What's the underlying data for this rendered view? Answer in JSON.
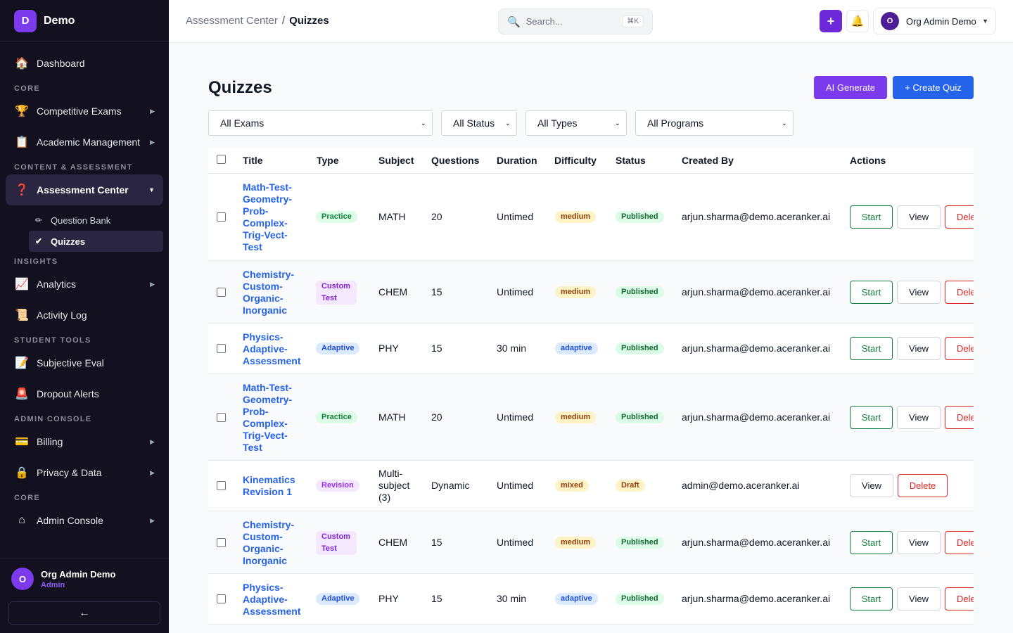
{
  "brand": {
    "logo_letter": "D",
    "name": "Demo"
  },
  "sidebar": {
    "dashboard": "Dashboard",
    "section_core": "CORE",
    "competitive_exams": "Competitive Exams",
    "academic_management": "Academic Management",
    "section_content": "CONTENT & ASSESSMENT",
    "assessment_center": "Assessment Center",
    "question_bank": "Question Bank",
    "quizzes": "Quizzes",
    "section_insights": "INSIGHTS",
    "analytics": "Analytics",
    "activity_log": "Activity Log",
    "section_student": "STUDENT TOOLS",
    "subjective_eval": "Subjective Eval",
    "dropout_alerts": "Dropout Alerts",
    "section_admin": "ADMIN CONSOLE",
    "billing": "Billing",
    "privacy_data": "Privacy & Data",
    "section_core2": "CORE",
    "admin_console": "Admin Console"
  },
  "footer_user": {
    "initial": "O",
    "name": "Org Admin Demo",
    "role": "Admin"
  },
  "topbar": {
    "breadcrumb_parent": "Assessment Center",
    "breadcrumb_sep": "/",
    "breadcrumb_current": "Quizzes",
    "search_placeholder": "Search...",
    "search_shortcut": "⌘K",
    "account_initial": "O",
    "account_name": "Org Admin Demo"
  },
  "page": {
    "title": "Quizzes",
    "ai_generate": "AI Generate",
    "create_quiz": "+ Create Quiz",
    "filters": {
      "exams": "All Exams",
      "status": "All Status",
      "types": "All Types",
      "programs": "All Programs"
    }
  },
  "table": {
    "headers": {
      "title": "Title",
      "type": "Type",
      "subject": "Subject",
      "questions": "Questions",
      "duration": "Duration",
      "difficulty": "Difficulty",
      "status": "Status",
      "created_by": "Created By",
      "actions": "Actions"
    },
    "action_labels": {
      "start": "Start",
      "view": "View",
      "delete": "Delete"
    },
    "rows": [
      {
        "title": "Math-Test-Geometry-Prob-Complex-Trig-Vect-Test",
        "type": "Practice",
        "subject": "MATH",
        "questions": "20",
        "duration": "Untimed",
        "difficulty": "medium",
        "status": "Published",
        "created_by": "arjun.sharma@demo.aceranker.ai"
      },
      {
        "title": "Chemistry-Custom-Organic-Inorganic",
        "type": "Custom Test",
        "subject": "CHEM",
        "questions": "15",
        "duration": "Untimed",
        "difficulty": "medium",
        "status": "Published",
        "created_by": "arjun.sharma@demo.aceranker.ai"
      },
      {
        "title": "Physics-Adaptive-Assessment",
        "type": "Adaptive",
        "subject": "PHY",
        "questions": "15",
        "duration": "30 min",
        "difficulty": "adaptive",
        "status": "Published",
        "created_by": "arjun.sharma@demo.aceranker.ai"
      },
      {
        "title": "Math-Test-Geometry-Prob-Complex-Trig-Vect-Test",
        "type": "Practice",
        "subject": "MATH",
        "questions": "20",
        "duration": "Untimed",
        "difficulty": "medium",
        "status": "Published",
        "created_by": "arjun.sharma@demo.aceranker.ai"
      },
      {
        "title": "Kinematics Revision 1",
        "type": "Revision",
        "subject": "Multi-subject (3)",
        "questions": "Dynamic",
        "duration": "Untimed",
        "difficulty": "mixed",
        "status": "Draft",
        "created_by": "admin@demo.aceranker.ai"
      },
      {
        "title": "Chemistry-Custom-Organic-Inorganic",
        "type": "Custom Test",
        "subject": "CHEM",
        "questions": "15",
        "duration": "Untimed",
        "difficulty": "medium",
        "status": "Published",
        "created_by": "arjun.sharma@demo.aceranker.ai"
      },
      {
        "title": "Physics-Adaptive-Assessment",
        "type": "Adaptive",
        "subject": "PHY",
        "questions": "15",
        "duration": "30 min",
        "difficulty": "adaptive",
        "status": "Published",
        "created_by": "arjun.sharma@demo.aceranker.ai"
      }
    ]
  },
  "colors": {
    "sidebar_bg": "#13111f",
    "accent_purple": "#7c3aed",
    "primary_blue": "#2563eb",
    "success_green": "#15803d",
    "danger_red": "#dc2626"
  }
}
